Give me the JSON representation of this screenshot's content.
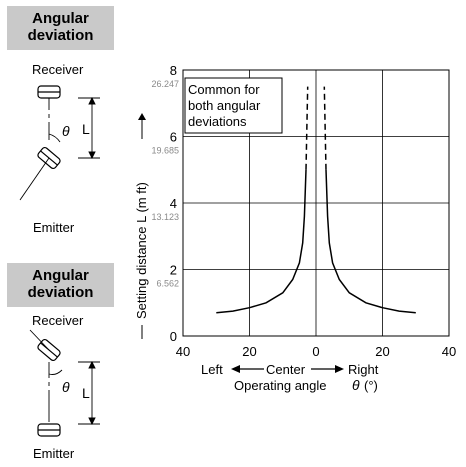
{
  "sections": [
    {
      "header_line1": "Angular",
      "header_line2": "deviation",
      "receiver_label": "Receiver",
      "emitter_label": "Emitter",
      "angle_symbol": "θ",
      "distance_symbol": "L"
    },
    {
      "header_line1": "Angular",
      "header_line2": "deviation",
      "receiver_label": "Receiver",
      "emitter_label": "Emitter",
      "angle_symbol": "θ",
      "distance_symbol": "L"
    }
  ],
  "chart_data": {
    "type": "line",
    "note_lines": [
      "Common for",
      "both angular",
      "deviations"
    ],
    "ylabel": "Setting distance L (m ft)",
    "xlabel_prefix": "Operating angle",
    "xlabel_symbol": "θ",
    "xlabel_unit": "(°)",
    "x_direction_labels": {
      "left": "Left",
      "center": "Center",
      "right": "Right"
    },
    "x_ticks": [
      {
        "value": -40,
        "label": "40"
      },
      {
        "value": -20,
        "label": "20"
      },
      {
        "value": 0,
        "label": "0"
      },
      {
        "value": 20,
        "label": "20"
      },
      {
        "value": 40,
        "label": "40"
      }
    ],
    "y_ticks": [
      {
        "value": 0,
        "label": "0",
        "ft": ""
      },
      {
        "value": 2,
        "label": "2",
        "ft": "6.562"
      },
      {
        "value": 4,
        "label": "4",
        "ft": "13.123"
      },
      {
        "value": 6,
        "label": "6",
        "ft": "19.685"
      },
      {
        "value": 8,
        "label": "8",
        "ft": "26.247"
      }
    ],
    "xlim": [
      -40,
      40
    ],
    "ylim": [
      0,
      8
    ],
    "grid": true,
    "series": [
      {
        "style": "solid",
        "x": [
          -30,
          -25,
          -20,
          -15,
          -10,
          -7,
          -5,
          -4,
          -3.5,
          -3
        ],
        "y": [
          0.7,
          0.75,
          0.85,
          1.0,
          1.3,
          1.7,
          2.2,
          2.8,
          3.6,
          5.0
        ]
      },
      {
        "style": "dashed",
        "x": [
          -3,
          -2.5
        ],
        "y": [
          5.0,
          7.5
        ]
      },
      {
        "style": "solid",
        "x": [
          3,
          3.5,
          4,
          5,
          7,
          10,
          15,
          20,
          25,
          30
        ],
        "y": [
          5.0,
          3.6,
          2.8,
          2.2,
          1.7,
          1.3,
          1.0,
          0.85,
          0.75,
          0.7
        ]
      },
      {
        "style": "dashed",
        "x": [
          3,
          2.5
        ],
        "y": [
          5.0,
          7.5
        ]
      }
    ]
  }
}
